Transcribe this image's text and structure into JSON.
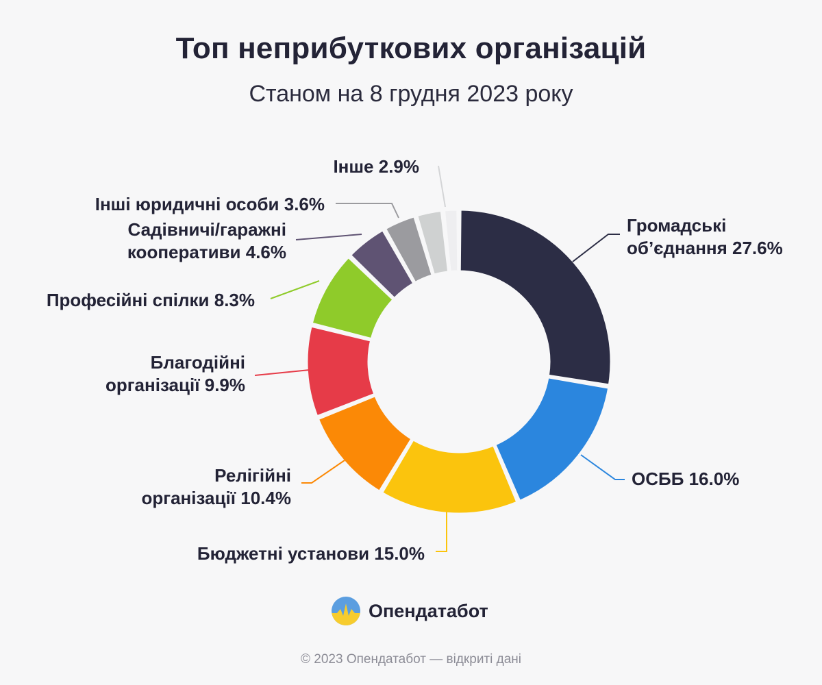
{
  "header": {
    "title": "Топ неприбуткових організацій",
    "subtitle": "Станом на 8 грудня 2023 року"
  },
  "chart_data": {
    "type": "pie",
    "variant": "donut",
    "title": "Топ неприбуткових організацій",
    "subtitle": "Станом на 8 грудня 2023 року",
    "unit": "%",
    "slices": [
      {
        "label": "Громадські об’єднання",
        "value": 27.6,
        "color": "#2c2d45",
        "display": [
          "Громадські",
          "об’єднання 27.6%"
        ]
      },
      {
        "label": "ОСББ",
        "value": 16.0,
        "color": "#2b86de",
        "display": [
          "ОСББ 16.0%"
        ]
      },
      {
        "label": "Бюджетні установи",
        "value": 15.0,
        "color": "#fbc40d",
        "display": [
          "Бюджетні установи 15.0%"
        ]
      },
      {
        "label": "Релігійні організації",
        "value": 10.4,
        "color": "#fb8906",
        "display": [
          "Релігійні",
          "організації 10.4%"
        ]
      },
      {
        "label": "Благодійні організації",
        "value": 9.9,
        "color": "#e63b48",
        "display": [
          "Благодійні",
          "організації 9.9%"
        ]
      },
      {
        "label": "Професійні спілки",
        "value": 8.3,
        "color": "#8fcb2a",
        "display": [
          "Професійні спілки 8.3%"
        ]
      },
      {
        "label": "Садівничі/гаражні кооперативи",
        "value": 4.6,
        "color": "#5f5373",
        "display": [
          "Садівничі/гаражні",
          "кооперативи 4.6%"
        ]
      },
      {
        "label": "Інші юридичні особи",
        "value": 3.6,
        "color": "#9b9b9f",
        "display": [
          "Інші юридичні особи 3.6%"
        ]
      },
      {
        "label": "Інше",
        "value": 2.9,
        "color": "#cfd1d1",
        "display": [
          "Інше 2.9%"
        ]
      },
      {
        "label": "",
        "value": 1.7,
        "color": "#eeeef0",
        "display": []
      }
    ],
    "legend": "none",
    "labels": "outside-with-leader-lines"
  },
  "brand": {
    "name": "Опендатабот",
    "logo_icon": "opendatabot-logo-icon"
  },
  "footer": {
    "text": "© 2023 Опендатабот — відкриті дані"
  }
}
